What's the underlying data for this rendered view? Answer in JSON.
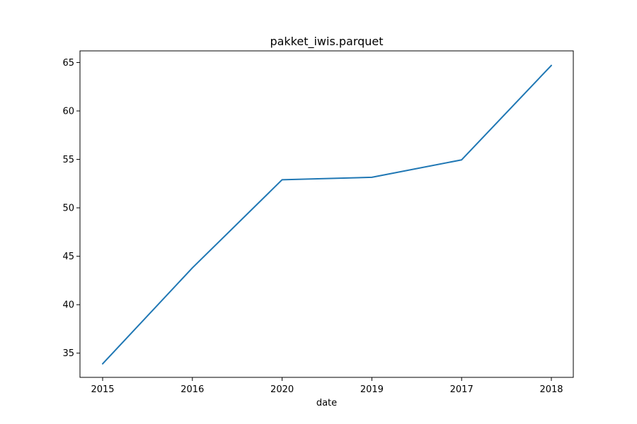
{
  "chart_data": {
    "type": "line",
    "title": "pakket_iwis.parquet",
    "xlabel": "date",
    "ylabel": "",
    "categories": [
      "2015",
      "2016",
      "2020",
      "2019",
      "2017",
      "2018"
    ],
    "series": [
      {
        "values": [
          33.9,
          43.8,
          52.9,
          53.15,
          54.95,
          64.7
        ],
        "color": "#1f77b4"
      }
    ],
    "ylim": [
      32.5,
      66.2
    ],
    "yticks": [
      35,
      40,
      45,
      50,
      55,
      60,
      65
    ],
    "grid": false,
    "legend": "none"
  }
}
